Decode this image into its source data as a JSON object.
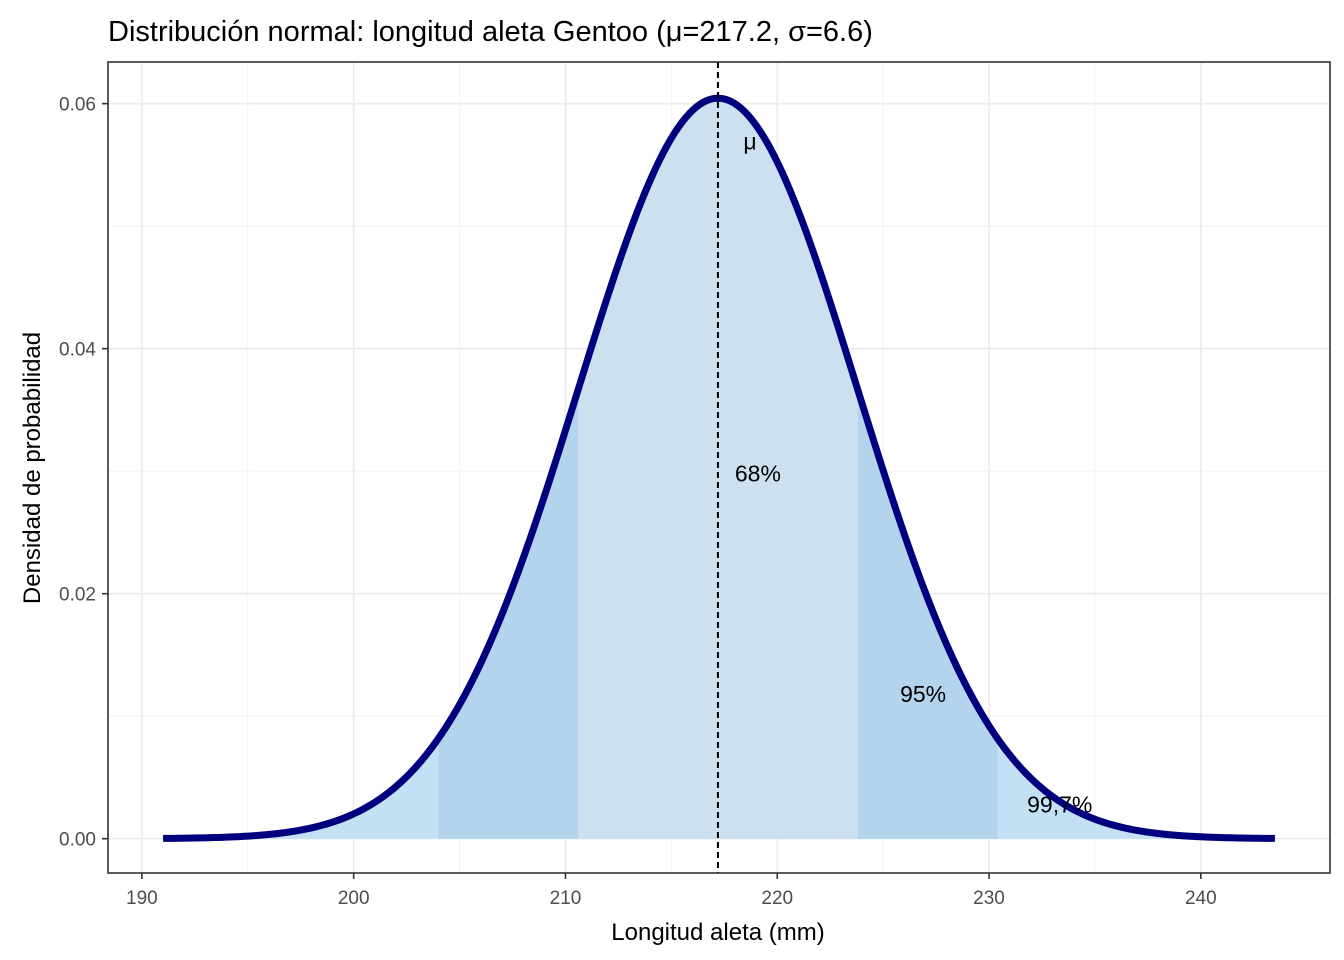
{
  "chart_data": {
    "type": "area",
    "title": "Distribución normal: longitud aleta Gentoo (μ=217.2, σ=6.6)",
    "xlabel": "Longitud aleta (mm)",
    "ylabel": "Densidad de probabilidad",
    "distribution": {
      "mean": 217.2,
      "sd": 6.6
    },
    "curve_range": [
      191,
      243.5
    ],
    "xlim": [
      188.4,
      246.1
    ],
    "ylim": [
      -0.0028,
      0.0634
    ],
    "x_ticks": [
      190,
      200,
      210,
      220,
      230,
      240
    ],
    "x_tick_labels": [
      "190",
      "200",
      "210",
      "220",
      "230",
      "240"
    ],
    "y_ticks": [
      0,
      0.02,
      0.04,
      0.06
    ],
    "y_tick_labels": [
      "0.00",
      "0.02",
      "0.04",
      "0.06"
    ],
    "grid": true,
    "bands": [
      {
        "range": [
          191,
          243.5
        ],
        "color": "#c4e0f5"
      },
      {
        "range": [
          204.0,
          230.4
        ],
        "color": "#b3d4ec"
      },
      {
        "range": [
          210.6,
          223.8
        ],
        "color": "#cce0ef"
      }
    ],
    "curve_color": "#00007f",
    "mean_line": {
      "x": 217.2,
      "style": "dashed",
      "color": "#000000"
    },
    "annotations": [
      {
        "text": "μ",
        "x": 218.4,
        "y": 0.0569
      },
      {
        "text": "68%",
        "x": 218.0,
        "y": 0.0298
      },
      {
        "text": "95%",
        "x": 225.8,
        "y": 0.0118
      },
      {
        "text": "99,7%",
        "x": 231.8,
        "y": 0.0028
      }
    ]
  }
}
